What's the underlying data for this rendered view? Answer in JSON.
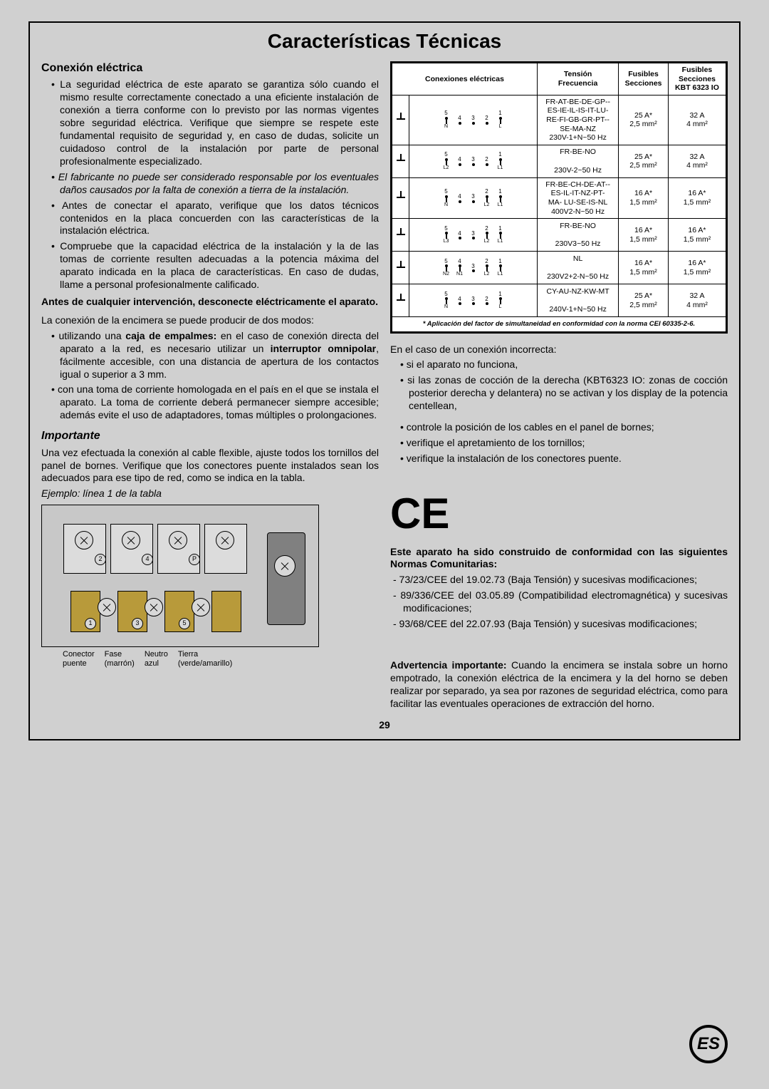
{
  "title": "Características Técnicas",
  "section1_heading": "Conexión eléctrica",
  "p1": "•   La seguridad eléctrica de este aparato se garantiza sólo cuando el mismo resulte correctamente conectado a una eficiente instalación de conexión a tierra conforme con lo previsto por las normas vigentes sobre seguridad eléctrica. Verifique que siempre se respete este fundamental requisito de seguridad y, en caso de dudas, solicite un cuidadoso control de la instalación por parte de personal profesionalmente especializado.",
  "p2": "•   El fabricante no puede ser considerado responsable por los eventuales daños causados por la falta de conexión a tierra de la instalación.",
  "p3": "•   Antes de conectar el aparato, verifique que los datos técnicos contenidos en la placa concuerden con las características de la instalación eléctrica.",
  "p4": "•   Compruebe que la capacidad eléctrica de la instalación y la de las tomas de corriente resulten adecuadas a la potencia máxima del aparato indicada en la placa de características. En caso de dudas, llame a personal profesionalmente calificado.",
  "sub1": "Antes de cualquier intervención, desconecte eléctricamente el aparato.",
  "p5": "La conexión de la encimera se puede producir de dos modos:",
  "p6a": "•   utilizando una ",
  "p6b": "caja de empalmes:",
  "p6c": " en el caso de conexión directa del aparato a la red, es necesario utilizar un ",
  "p6d": "interruptor omnipolar",
  "p6e": ", fácilmente accesible, con una distancia de apertura de los contactos igual o superior a 3 mm.",
  "p7": "•   con una toma de corriente homologada en el país en el que se instala el aparato. La toma de corriente deberá permanecer siempre accesible; además evite el uso de adaptadores, tomas múltiples o prolongaciones.",
  "importante": "Importante",
  "p8": "Una vez efectuada la conexión al cable flexible, ajuste todos los tornillos del panel de bornes. Verifique que los conectores puente instalados sean los adecuados para ese tipo de red, como se indica en la tabla.",
  "p9": "Ejemplo: línea 1 de la tabla",
  "legend": {
    "a1": "Conector",
    "a2": "puente",
    "b1": "Fase",
    "b2": "(marrón)",
    "c1": "Neutro",
    "c2": "azul",
    "d1": "Tierra",
    "d2": "(verde/amarillo)"
  },
  "table": {
    "headers": [
      "Conexiones eléctricas",
      "Tensión\nFrecuencia",
      "Fusibles\nSecciones",
      "Fusibles\nSecciones\nKBT 6323 IO"
    ],
    "rows": [
      {
        "pins": [
          [
            "5",
            "N"
          ],
          [
            "4",
            ""
          ],
          [
            "3",
            ""
          ],
          [
            "2",
            ""
          ],
          [
            "1",
            "L"
          ]
        ],
        "tf": "FR-AT-BE-DE-GP--\nES-IE-IL-IS-IT-LU-\nRE-FI-GB-GR-PT--\nSE-MA-NZ\n230V-1+N~50 Hz",
        "f1": "25 A*\n2,5 mm²",
        "f2": "32 A\n4 mm²"
      },
      {
        "pins": [
          [
            "5",
            "L2"
          ],
          [
            "4",
            ""
          ],
          [
            "3",
            ""
          ],
          [
            "2",
            ""
          ],
          [
            "1",
            "L1"
          ]
        ],
        "tf": "FR-BE-NO\n\n230V-2~50 Hz",
        "f1": "25 A*\n2,5 mm²",
        "f2": "32 A\n4 mm²"
      },
      {
        "pins": [
          [
            "5",
            "N"
          ],
          [
            "4",
            ""
          ],
          [
            "3",
            ""
          ],
          [
            "2",
            "L2"
          ],
          [
            "1",
            "L1"
          ]
        ],
        "tf": "FR-BE-CH-DE-AT--\nES-IL-IT-NZ-PT-\nMA- LU-SE-IS-NL\n400V2-N~50 Hz",
        "f1": "16 A*\n1,5 mm²",
        "f2": "16 A*\n1,5 mm²"
      },
      {
        "pins": [
          [
            "5",
            "L3"
          ],
          [
            "4",
            ""
          ],
          [
            "3",
            ""
          ],
          [
            "2",
            "L2"
          ],
          [
            "1",
            "L1"
          ]
        ],
        "tf": "FR-BE-NO\n\n230V3~50 Hz",
        "f1": "16 A*\n1,5 mm²",
        "f2": "16 A*\n1,5 mm²"
      },
      {
        "pins": [
          [
            "5",
            "N2"
          ],
          [
            "4",
            "N1"
          ],
          [
            "3",
            ""
          ],
          [
            "2",
            "L2"
          ],
          [
            "1",
            "L1"
          ]
        ],
        "tf": "NL\n\n230V2+2-N~50 Hz",
        "f1": "16 A*\n1,5 mm²",
        "f2": "16 A*\n1,5 mm²"
      },
      {
        "pins": [
          [
            "5",
            "N"
          ],
          [
            "4",
            ""
          ],
          [
            "3",
            ""
          ],
          [
            "2",
            ""
          ],
          [
            "1",
            "L"
          ]
        ],
        "tf": "CY-AU-NZ-KW-MT\n\n240V-1+N~50 Hz",
        "f1": "25 A*\n2,5 mm²",
        "f2": "32 A\n4 mm²"
      }
    ],
    "footnote": "* Aplicación del factor de simultaneidad en conformidad con la norma CEI 60335-2-6."
  },
  "r1": "En el caso de un conexión incorrecta:",
  "r2": "•   si el aparato no funciona,",
  "r3": "•   si las zonas de cocción de la derecha (KBT6323 IO: zonas de cocción posterior derecha y delantera) no se activan y los display de la potencia centellean,",
  "r4": "•   controle la posición de los cables en el panel de bornes;",
  "r5": "•   verifique el apretamiento de los tornillos;",
  "r6": "•   verifique la instalación de los conectores puente.",
  "ce_intro": "Este aparato ha sido construido de conformidad con las siguientes Normas Comunitarias:",
  "ce1": "-   73/23/CEE del 19.02.73 (Baja Tensión) y sucesivas modificaciones;",
  "ce2": "-   89/336/CEE del 03.05.89 (Compatibilidad electromagnética) y sucesivas modificaciones;",
  "ce3": "-   93/68/CEE del 22.07.93 (Baja Tensión) y sucesivas modificaciones;",
  "warn_label": "Advertencia importante:",
  "warn": " Cuando la encimera se instala sobre un horno empotrado, la conexión eléctrica de la encimera y la del horno se deben realizar por separado, ya sea por razones de seguridad eléctrica, como para facilitar las eventuales operaciones de extracción del horno.",
  "page_num": "29",
  "lang_badge": "ES"
}
